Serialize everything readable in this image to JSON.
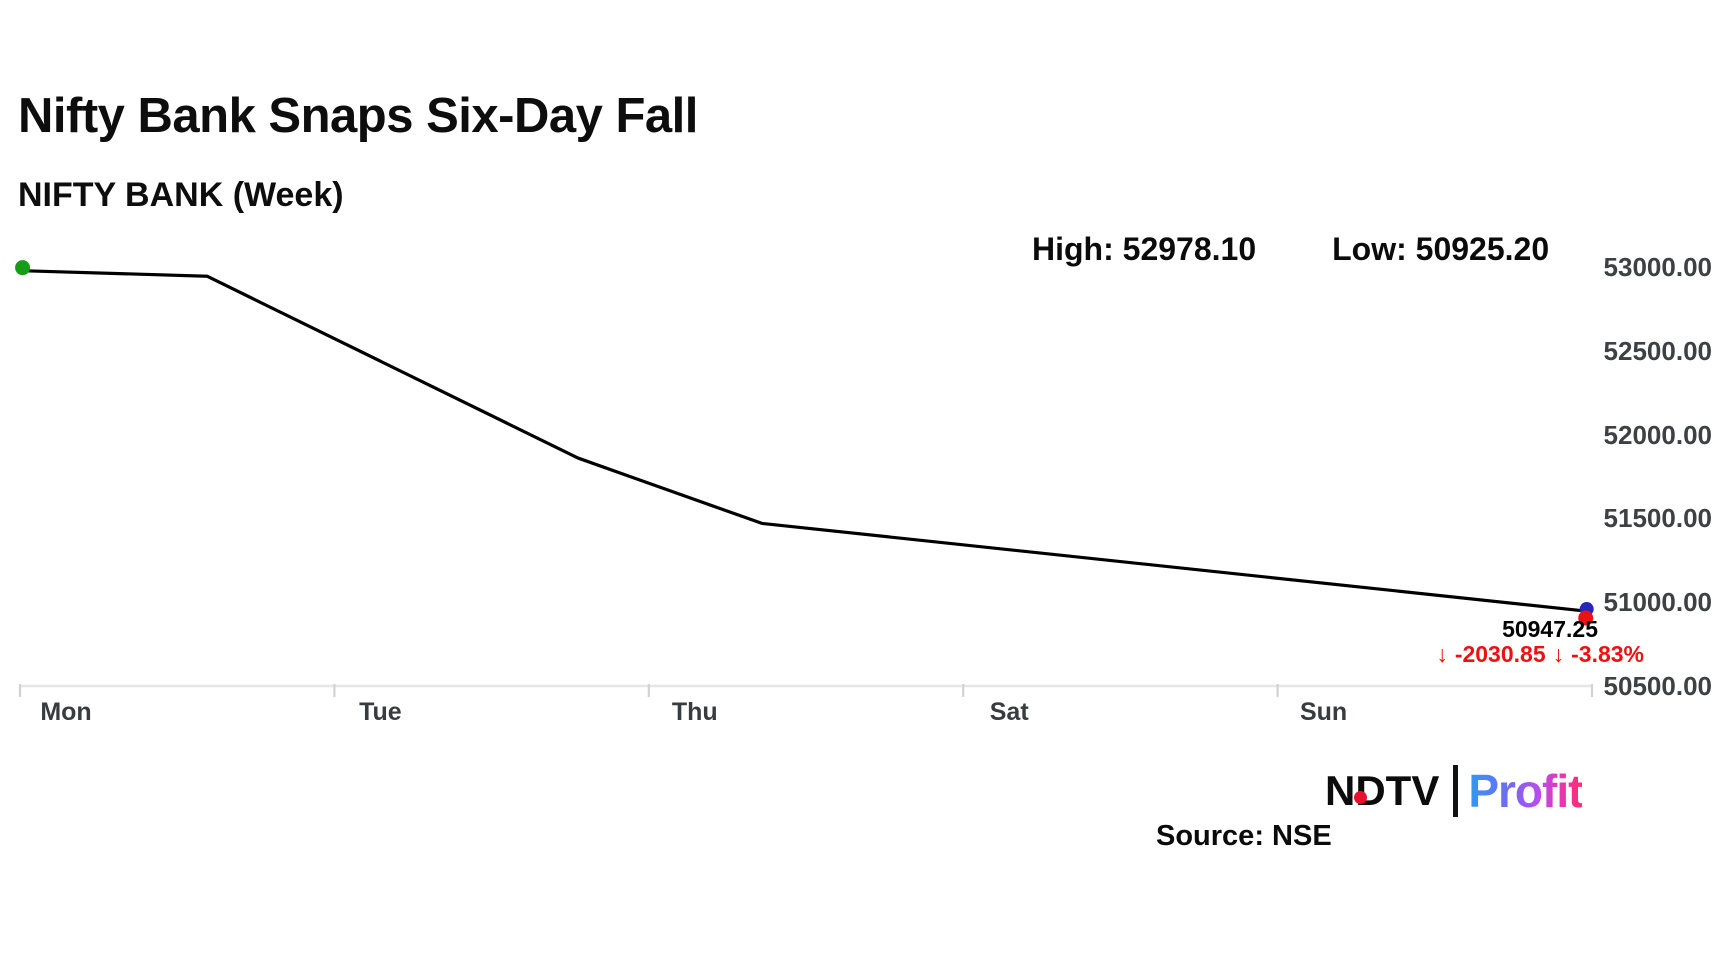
{
  "header": {
    "title": "Nifty Bank Snaps Six-Day Fall",
    "subtitle": "NIFTY BANK (Week)",
    "high_label": "High:",
    "high_value": "52978.10",
    "low_label": "Low:",
    "low_value": "50925.20"
  },
  "chart_data": {
    "type": "line",
    "title": "Nifty Bank Snaps Six-Day Fall",
    "subtitle": "NIFTY BANK (Week)",
    "instrument": "NIFTY BANK",
    "period": "Week",
    "high": 52978.1,
    "low": 50925.2,
    "last": 50947.25,
    "change": -2030.85,
    "change_pct": -3.83,
    "ylim": [
      50500,
      53000
    ],
    "y_tick_labels": [
      "53000.00",
      "52500.00",
      "52000.00",
      "51500.00",
      "51000.00",
      "50500.00"
    ],
    "x_tick_labels": [
      "Mon",
      "Tue",
      "Thu",
      "Sat",
      "Sun"
    ],
    "grid": false,
    "legend": "none",
    "line_color": "#000000",
    "start_dot_color": "#169c16",
    "end_dot_blue": "#2626bd",
    "end_dot_red": "#ee1111",
    "axis_color": "#e6e6e6",
    "tick_color": "#d2d2d2",
    "series": [
      {
        "name": "NIFTY BANK (Week)",
        "points": [
          {
            "x": 0.001,
            "value": 52978.1
          },
          {
            "x": 0.119,
            "value": 52945.0
          },
          {
            "x": 0.355,
            "value": 51860.0
          },
          {
            "x": 0.472,
            "value": 51470.0
          },
          {
            "x": 0.996,
            "value": 50947.25
          }
        ]
      }
    ]
  },
  "annotation": {
    "last_value": "50947.25",
    "down_arrow": "↓",
    "change": "-2030.85",
    "change_pct": "-3.83%",
    "negative_color": "#ee1111"
  },
  "footer": {
    "source": "Source: NSE",
    "logo_ndtv": "NDTV",
    "logo_profit": "Profit",
    "logo_dot_color": "#e8112d"
  }
}
